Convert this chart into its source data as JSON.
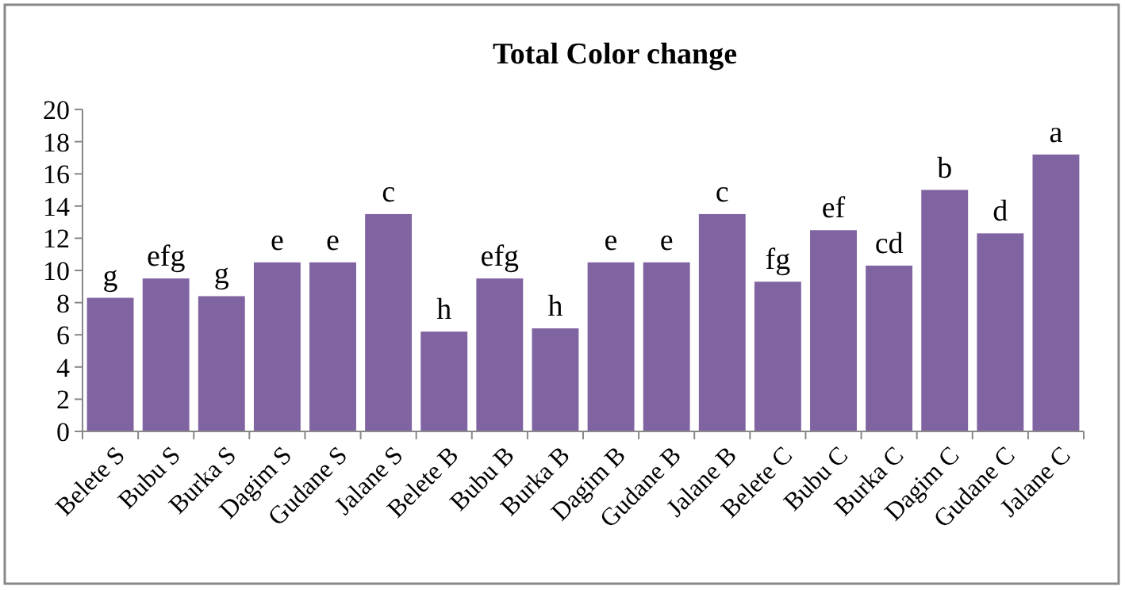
{
  "chart_data": {
    "type": "bar",
    "title": "Total Color change",
    "categories": [
      "Belete S",
      "Bubu S",
      "Burka S",
      "Dagim S",
      "Gudane S",
      "Jalane S",
      "Belete B",
      "Bubu B",
      "Burka B",
      "Dagim B",
      "Gudane B",
      "Jalane B",
      "Belete C",
      "Bubu C",
      "Burka C",
      "Dagim C",
      "Gudane C",
      "Jalane C"
    ],
    "values": [
      8.3,
      9.5,
      8.4,
      10.5,
      10.5,
      13.5,
      6.2,
      9.5,
      6.4,
      10.5,
      10.5,
      13.5,
      9.3,
      12.5,
      10.3,
      15.0,
      12.3,
      17.2
    ],
    "color": "#8064a2",
    "ylim": [
      0,
      20
    ],
    "yticks": [
      0,
      2,
      4,
      6,
      8,
      10,
      12,
      14,
      16,
      18,
      20
    ],
    "grid": false,
    "annotations": [
      {
        "text": "g",
        "x": "Belete S",
        "y": 8.3
      },
      {
        "text": "efg",
        "x": "Bubu S",
        "y": 9.5
      },
      {
        "text": "g",
        "x": "Burka S",
        "y": 8.4
      },
      {
        "text": "e",
        "x": "Dagim S",
        "y": 10.5
      },
      {
        "text": "e",
        "x": "Gudane S",
        "y": 10.5
      },
      {
        "text": "c",
        "x": "Jalane S",
        "y": 13.5
      },
      {
        "text": "h",
        "x": "Belete B",
        "y": 6.2
      },
      {
        "text": "efg",
        "x": "Bubu B",
        "y": 9.5
      },
      {
        "text": "h",
        "x": "Burka B",
        "y": 6.4
      },
      {
        "text": "e",
        "x": "Dagim B",
        "y": 10.5
      },
      {
        "text": "e",
        "x": "Gudane B",
        "y": 10.5
      },
      {
        "text": "c",
        "x": "Jalane B",
        "y": 13.5
      },
      {
        "text": "fg",
        "x": "Belete C",
        "y": 9.3
      },
      {
        "text": "ef",
        "x": "Bubu C",
        "y": 12.5
      },
      {
        "text": "cd",
        "x": "Burka C",
        "y": 10.3
      },
      {
        "text": "b",
        "x": "Dagim C",
        "y": 15.0
      },
      {
        "text": "d",
        "x": "Gudane C",
        "y": 12.3
      },
      {
        "text": "a",
        "x": "Jalane C",
        "y": 17.2
      }
    ]
  }
}
